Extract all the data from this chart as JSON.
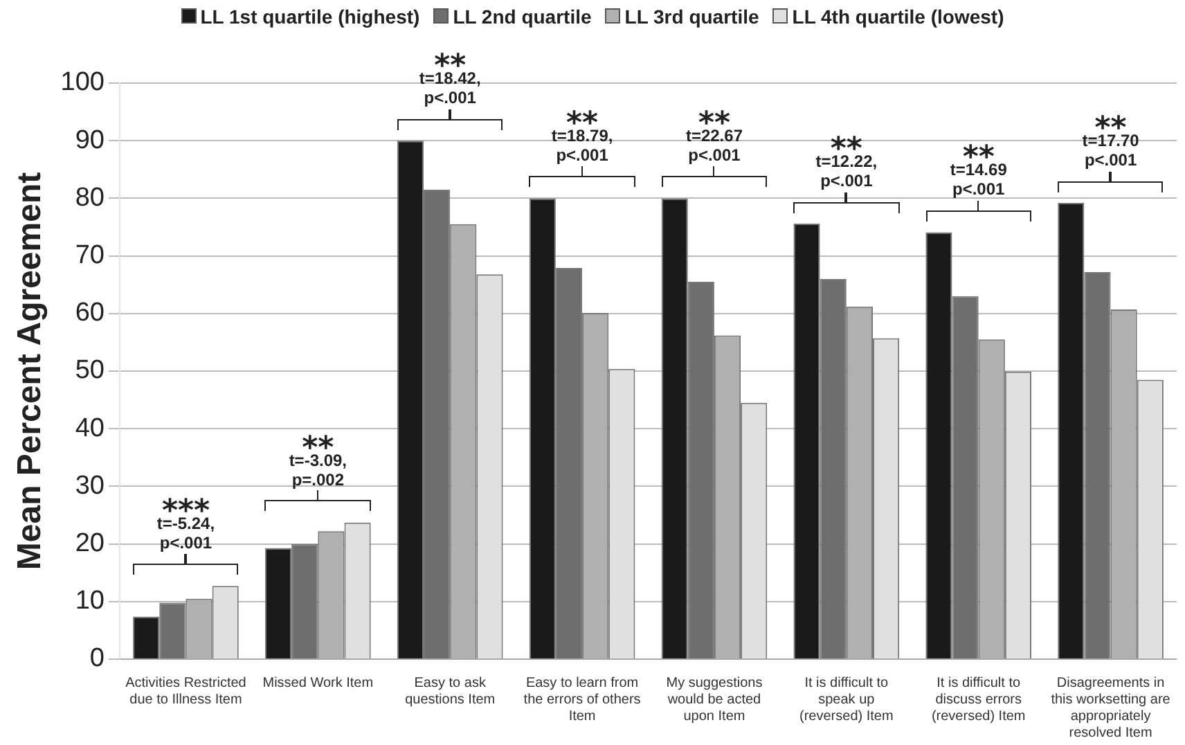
{
  "chart_data": {
    "type": "bar",
    "ylabel": "Mean Percent Agreement",
    "categories": [
      "Activities Restricted due to Illness Item",
      "Missed Work Item",
      "Easy to ask questions Item",
      "Easy to learn from the errors of others Item",
      "My suggestions would be acted upon Item",
      "It is difficult to speak up (reversed) Item",
      "It is difficult to discuss errors (reversed) Item",
      "Disagreements in this worksetting are appropriately resolved Item"
    ],
    "series": [
      {
        "name": "LL 1st quartile (highest)",
        "color": "#1a1a1a",
        "values": [
          7.4,
          19.3,
          90,
          80,
          80,
          75.6,
          74.1,
          79.2
        ]
      },
      {
        "name": "LL 2nd quartile",
        "color": "#6e6e6e",
        "values": [
          9.8,
          20,
          81.5,
          67.9,
          65.5,
          66,
          63,
          67.2
        ]
      },
      {
        "name": "LL 3rd quartile",
        "color": "#b0b0b0",
        "values": [
          10.5,
          22.2,
          75.5,
          60.1,
          56.2,
          61.2,
          55.5,
          60.7
        ]
      },
      {
        "name": "LL 4th quartile (lowest)",
        "color": "#e0e0e0",
        "values": [
          12.7,
          23.7,
          66.8,
          50.4,
          44.5,
          55.7,
          49.9,
          48.5
        ]
      }
    ],
    "ylim": [
      0,
      100
    ],
    "yticks": [
      0,
      10,
      20,
      30,
      40,
      50,
      60,
      70,
      80,
      90,
      100
    ],
    "grid": "y",
    "legend": "top",
    "annotations": [
      "***",
      "t=-5.24,",
      "p<.001",
      "**",
      "t=-3.09,",
      "p=.002",
      "**",
      "t=18.42,",
      "p<.001",
      "**",
      "t=18.79,",
      "p<.001",
      "**",
      "t=22.67",
      "p<.001",
      "**",
      "t=12.22,",
      "p<.001",
      "**",
      "t=14.69",
      "p<.001",
      "**",
      "t=17.70",
      "p<.001"
    ]
  }
}
